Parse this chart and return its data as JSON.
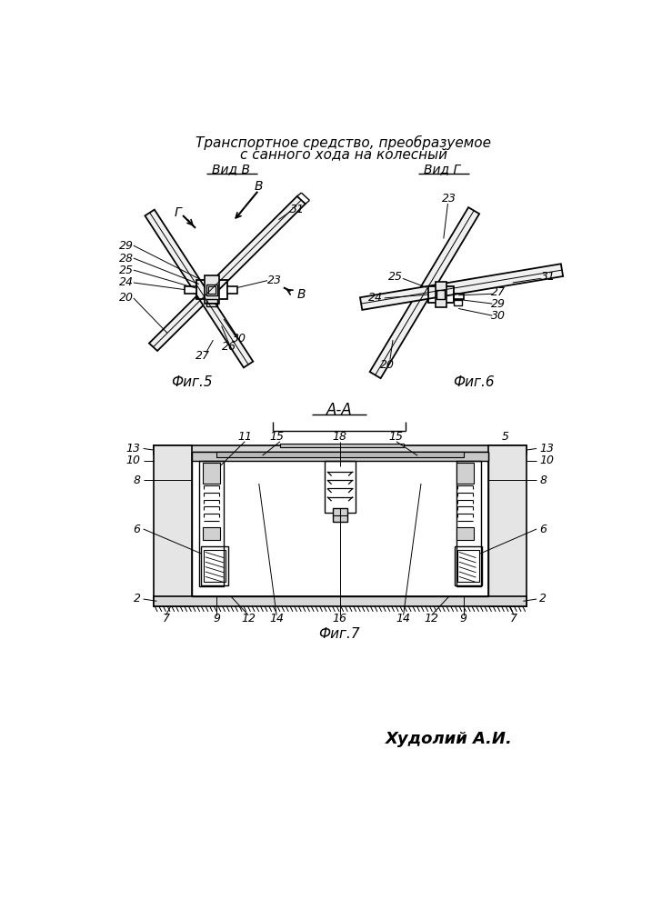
{
  "title_line1": "Транспортное средство, преобразуемое",
  "title_line2": "с санного хода на колесный",
  "fig5_label": "Фиг.5",
  "fig6_label": "Фиг.6",
  "fig7_label": "Фиг.7",
  "view_B_label": "Вид В",
  "view_G_label": "Вид Г",
  "section_AA_label": "А-А",
  "author": "Худолий А.И.",
  "bg_color": "#ffffff",
  "line_color": "#000000"
}
